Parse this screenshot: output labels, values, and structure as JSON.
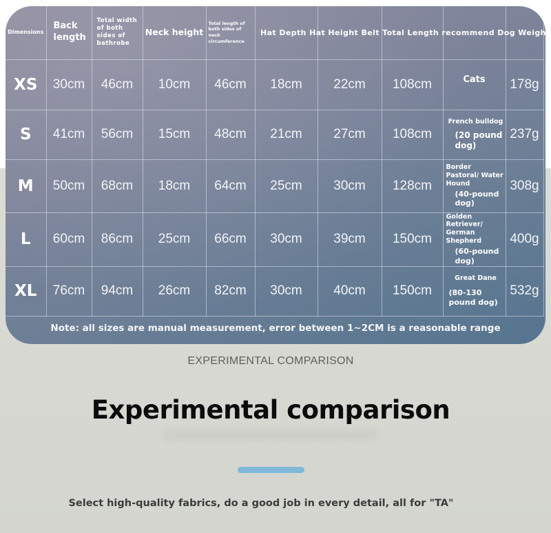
{
  "size_chart": {
    "headers": {
      "dimensions": "Dimensions",
      "back_length": "Back length",
      "total_width": "Total width of both sides of bathrobe",
      "neck_height": "Neck height",
      "total_length_neck": "Total length of both sides of neck circumference",
      "merged": "Hat Depth Hat Height Belt Total Length recommend Dog Weight"
    },
    "rows": [
      {
        "size": "XS",
        "back_length": "30cm",
        "total_width": "46cm",
        "neck_height": "10cm",
        "neck_circumference": "46cm",
        "hat_depth": "18cm",
        "hat_height": "22cm",
        "belt_length": "108cm",
        "dog_breed": "Cats",
        "dog_weight": "",
        "weight": "178g"
      },
      {
        "size": "S",
        "back_length": "41cm",
        "total_width": "56cm",
        "neck_height": "15cm",
        "neck_circumference": "48cm",
        "hat_depth": "21cm",
        "hat_height": "27cm",
        "belt_length": "108cm",
        "dog_breed": "French bulldog",
        "dog_weight": "(20 pound dog)",
        "weight": "237g"
      },
      {
        "size": "M",
        "back_length": "50cm",
        "total_width": "68cm",
        "neck_height": "18cm",
        "neck_circumference": "64cm",
        "hat_depth": "25cm",
        "hat_height": "30cm",
        "belt_length": "128cm",
        "dog_breed": "Border Pastoral/ Water Hound",
        "dog_weight": "(40-pound dog)",
        "weight": "308g"
      },
      {
        "size": "L",
        "back_length": "60cm",
        "total_width": "86cm",
        "neck_height": "25cm",
        "neck_circumference": "66cm",
        "hat_depth": "30cm",
        "hat_height": "39cm",
        "belt_length": "150cm",
        "dog_breed": "Golden Retriever/ German Shepherd",
        "dog_weight": "(60-pound dog)",
        "weight": "400g"
      },
      {
        "size": "XL",
        "back_length": "76cm",
        "total_width": "94cm",
        "neck_height": "26cm",
        "neck_circumference": "82cm",
        "hat_depth": "30cm",
        "hat_height": "40cm",
        "belt_length": "150cm",
        "dog_breed": "Great Dane",
        "dog_weight": "(80-130 pound dog)",
        "weight": "532g"
      }
    ],
    "note": "Note: all sizes are manual measurement, error between 1~2CM is a reasonable range"
  },
  "section": {
    "caption": "EXPERIMENTAL COMPARISON",
    "title": "Experimental comparison",
    "tagline": "Select high-quality fabrics, do a good job in every detail, all for \"TA\""
  },
  "colors": {
    "accent_bar": "#7fb8d8",
    "card_gradient_start": "#8d8a9e",
    "card_gradient_end": "#55748f"
  }
}
